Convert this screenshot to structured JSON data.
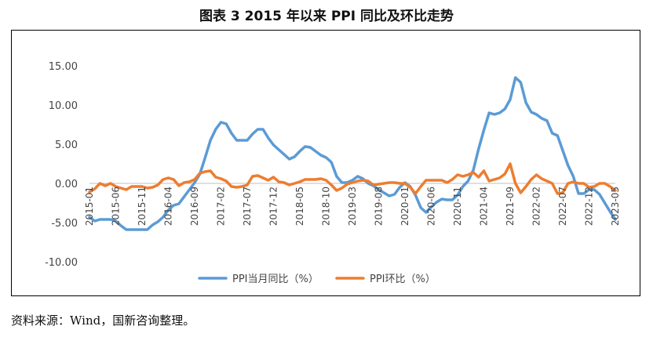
{
  "header": {
    "title": "图表 3 2015 年以来 PPI 同比及环比走势"
  },
  "footer": {
    "source": "资料来源：Wind，国新咨询整理。"
  },
  "chart_data": {
    "type": "line",
    "title": "图表 3 2015 年以来 PPI 同比及环比走势",
    "xlabel": "",
    "ylabel": "",
    "ylim": [
      -10,
      15
    ],
    "yticks": [
      15,
      10,
      5,
      0,
      -5,
      -10
    ],
    "ytick_labels": [
      "15.00",
      "10.00",
      "5.00",
      "0.00",
      "-5.00",
      "-10.00"
    ],
    "xtick_labels": [
      "2015-01",
      "2015-06",
      "2015-11",
      "2016-04",
      "2016-09",
      "2017-02",
      "2017-07",
      "2017-12",
      "2018-05",
      "2018-10",
      "2019-03",
      "2019-08",
      "2020-01",
      "2020-06",
      "2020-11",
      "2021-04",
      "2021-09",
      "2022-02",
      "2022-07",
      "2022-12",
      "2023-05"
    ],
    "grid": false,
    "legend_position": "bottom",
    "x_start": "2015-01",
    "series": [
      {
        "name": "PPI当月同比（%）",
        "color": "#5B9BD5",
        "values": [
          -4.3,
          -4.8,
          -4.6,
          -4.6,
          -4.6,
          -4.8,
          -5.4,
          -5.9,
          -5.9,
          -5.9,
          -5.9,
          -5.9,
          -5.3,
          -4.9,
          -4.3,
          -3.4,
          -2.8,
          -2.6,
          -1.7,
          -0.8,
          0.1,
          1.2,
          3.3,
          5.5,
          6.9,
          7.8,
          7.6,
          6.4,
          5.5,
          5.5,
          5.5,
          6.3,
          6.9,
          6.9,
          5.8,
          4.9,
          4.3,
          3.7,
          3.1,
          3.4,
          4.1,
          4.7,
          4.6,
          4.1,
          3.6,
          3.3,
          2.7,
          0.9,
          0.1,
          0.1,
          0.4,
          0.9,
          0.6,
          0.0,
          -0.3,
          -0.8,
          -1.2,
          -1.6,
          -1.4,
          -0.5,
          0.1,
          -0.4,
          -1.5,
          -3.1,
          -3.7,
          -3.0,
          -2.4,
          -2.0,
          -2.1,
          -2.1,
          -1.5,
          -0.4,
          0.3,
          1.7,
          4.4,
          6.8,
          9.0,
          8.8,
          9.0,
          9.5,
          10.7,
          13.5,
          12.9,
          10.3,
          9.1,
          8.8,
          8.3,
          8.0,
          6.4,
          6.1,
          4.2,
          2.3,
          0.9,
          -1.3,
          -1.3,
          -0.8,
          -0.8,
          -1.4,
          -2.5,
          -3.6,
          -4.6
        ],
        "line_width": 3.5
      },
      {
        "name": "PPI环比（%）",
        "color": "#ED7D31",
        "values": [
          -1.1,
          -0.7,
          0.0,
          -0.3,
          0.0,
          -0.4,
          -0.6,
          -0.8,
          -0.4,
          -0.4,
          -0.4,
          -0.6,
          -0.5,
          -0.2,
          0.5,
          0.7,
          0.5,
          -0.3,
          0.1,
          0.2,
          0.5,
          1.3,
          1.5,
          1.6,
          0.8,
          0.6,
          0.3,
          -0.4,
          -0.5,
          -0.4,
          -0.2,
          0.9,
          1.0,
          0.7,
          0.4,
          0.8,
          0.2,
          0.1,
          -0.2,
          0.0,
          0.2,
          0.5,
          0.5,
          0.5,
          0.6,
          0.4,
          -0.2,
          -0.9,
          -0.6,
          -0.1,
          0.1,
          0.3,
          0.4,
          0.3,
          -0.2,
          -0.1,
          0.0,
          0.1,
          0.1,
          0.0,
          0.0,
          -0.5,
          -1.3,
          -0.4,
          0.4,
          0.4,
          0.4,
          0.4,
          0.1,
          0.5,
          1.1,
          0.9,
          1.1,
          1.4,
          0.8,
          1.6,
          0.3,
          0.5,
          0.7,
          1.2,
          2.5,
          0.0,
          -1.2,
          -0.4,
          0.5,
          1.1,
          0.6,
          0.3,
          0.0,
          -1.3,
          -1.2,
          0.0,
          0.2,
          0.0,
          0.0,
          -0.5,
          -0.4,
          0.0,
          0.0,
          -0.4,
          -0.9
        ],
        "line_width": 3.5
      }
    ]
  }
}
